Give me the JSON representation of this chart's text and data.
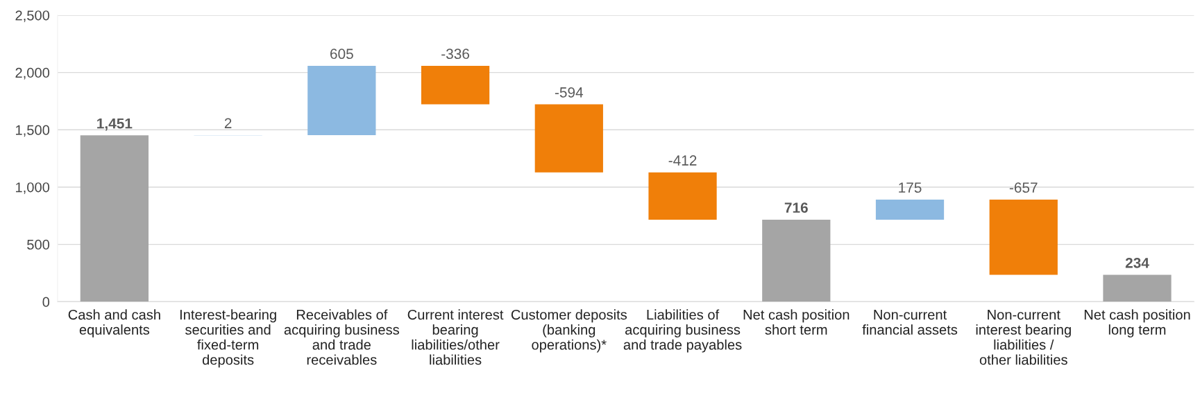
{
  "chart_data": {
    "type": "bar",
    "categories": [
      "Cash and cash equivalents",
      "Interest-bearing securities and fixed-term deposits",
      "Receivables of acquiring business and trade receivables",
      "Current interest bearing liabilities/other liabilities",
      "Customer deposits (banking operations)*",
      "Liabilities of acquiring business and trade payables",
      "Net cash position short term",
      "Non-current financial assets",
      "Non-current interest bearing liabilities / other liabilities",
      "Net cash position long term"
    ],
    "values": [
      1451,
      2,
      605,
      -336,
      -594,
      -412,
      716,
      175,
      -657,
      234
    ],
    "base": [
      0,
      1451,
      1453,
      2058,
      1722,
      1128,
      0,
      716,
      891,
      0
    ],
    "colors": [
      "#a5a5a5",
      "#8cb9e1",
      "#8cb9e1",
      "#f07f09",
      "#f07f09",
      "#f07f09",
      "#a5a5a5",
      "#8cb9e1",
      "#f07f09",
      "#a5a5a5"
    ],
    "value_labels": [
      "1,451",
      "2",
      "605",
      "-336",
      "-594",
      "-412",
      "716",
      "175",
      "-657",
      "234"
    ],
    "ylim": [
      0,
      2500
    ],
    "yticks": [
      {
        "value": 0,
        "label": "0"
      },
      {
        "value": 500,
        "label": "500"
      },
      {
        "value": 1000,
        "label": "1,000"
      },
      {
        "value": 1500,
        "label": "1,500"
      },
      {
        "value": 2000,
        "label": "2,000"
      },
      {
        "value": 2500,
        "label": "2,500"
      }
    ],
    "grid": "y",
    "legend": false
  }
}
